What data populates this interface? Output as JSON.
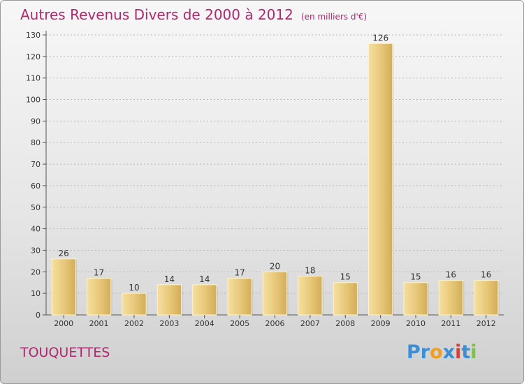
{
  "chart_data": {
    "type": "bar",
    "title": "Autres Revenus Divers de 2000 à 2012",
    "subtitle": "(en milliers d'€)",
    "categories": [
      "2000",
      "2001",
      "2002",
      "2003",
      "2004",
      "2005",
      "2006",
      "2007",
      "2008",
      "2009",
      "2010",
      "2011",
      "2012"
    ],
    "values": [
      26,
      17,
      10,
      14,
      14,
      17,
      20,
      18,
      15,
      126,
      15,
      16,
      16
    ],
    "ylim": [
      0,
      130
    ],
    "yticks": [
      0,
      10,
      20,
      30,
      40,
      50,
      60,
      70,
      80,
      90,
      100,
      110,
      120,
      130
    ],
    "grid": true,
    "bar_color": "#e8c97a",
    "bar_color_light": "#f5dfa0",
    "bar_color_dark": "#d2ad5a",
    "xlabel": "",
    "ylabel": ""
  },
  "footer": {
    "place": "TOUQUETTES",
    "brand_letters": [
      {
        "ch": "P",
        "color": "#3a8fd6"
      },
      {
        "ch": "r",
        "color": "#3a8fd6"
      },
      {
        "ch": "o",
        "color": "#f0a020"
      },
      {
        "ch": "x",
        "color": "#3a8fd6"
      },
      {
        "ch": "i",
        "color": "#e03c30"
      },
      {
        "ch": "t",
        "color": "#3a8fd6"
      },
      {
        "ch": "i",
        "color": "#7cc243"
      }
    ]
  }
}
